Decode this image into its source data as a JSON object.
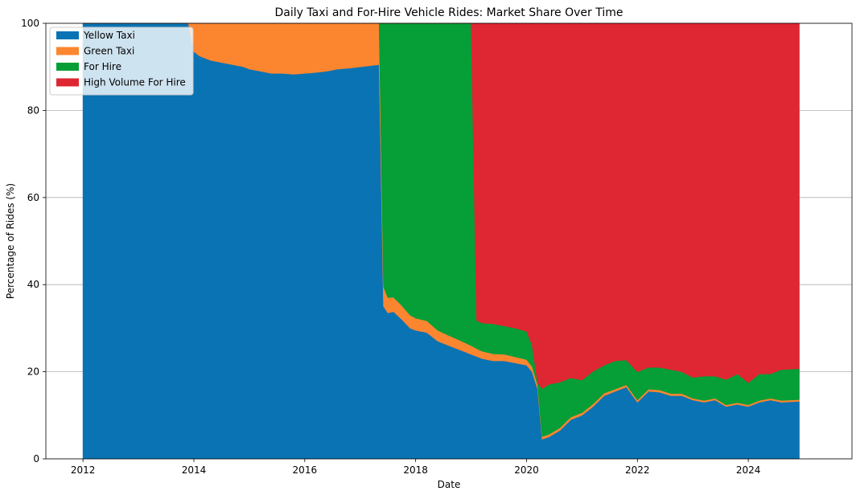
{
  "chart_data": {
    "type": "area",
    "title": "Daily Taxi and For-Hire Vehicle Rides: Market Share Over Time",
    "xlabel": "Date",
    "ylabel": "Percentage of Rides (%)",
    "xlim": [
      2011.33,
      2025.87
    ],
    "ylim": [
      0,
      100
    ],
    "x_ticks": [
      2012,
      2014,
      2016,
      2018,
      2020,
      2022,
      2024
    ],
    "y_ticks": [
      0,
      20,
      40,
      60,
      80,
      100
    ],
    "grid": true,
    "stacked": true,
    "legend_position": "top-left",
    "x": [
      2012.0,
      2013.9,
      2014.0,
      2014.1,
      2014.3,
      2014.5,
      2014.7,
      2014.9,
      2015.0,
      2015.2,
      2015.4,
      2015.6,
      2015.8,
      2016.0,
      2016.2,
      2016.4,
      2016.6,
      2016.8,
      2017.0,
      2017.2,
      2017.34,
      2017.42,
      2017.5,
      2017.6,
      2017.75,
      2017.9,
      2018.0,
      2018.2,
      2018.4,
      2018.6,
      2018.8,
      2019.0,
      2019.1,
      2019.2,
      2019.4,
      2019.6,
      2019.8,
      2020.0,
      2020.1,
      2020.2,
      2020.28,
      2020.4,
      2020.6,
      2020.8,
      2021.0,
      2021.2,
      2021.4,
      2021.6,
      2021.8,
      2022.0,
      2022.2,
      2022.4,
      2022.6,
      2022.8,
      2023.0,
      2023.2,
      2023.4,
      2023.6,
      2023.8,
      2024.0,
      2024.2,
      2024.4,
      2024.6,
      2024.92
    ],
    "series": [
      {
        "name": "Yellow Taxi",
        "color": "#0a73b3",
        "values": [
          100,
          100,
          93.5,
          92.5,
          91.5,
          91,
          90.5,
          90,
          89.5,
          89,
          88.5,
          88.5,
          88.3,
          88.5,
          88.7,
          89,
          89.5,
          89.7,
          90,
          90.3,
          90.5,
          35,
          33.5,
          33.8,
          32,
          30,
          29.5,
          29,
          27,
          26,
          25,
          24,
          23.5,
          23,
          22.5,
          22.5,
          22,
          21.5,
          20,
          16,
          4.5,
          5,
          6.5,
          9,
          10,
          12,
          14.5,
          15.5,
          16.5,
          13,
          15.5,
          15.3,
          14.5,
          14.5,
          13.5,
          13,
          13.5,
          12,
          12.5,
          12,
          13,
          13.5,
          13,
          13.2
        ]
      },
      {
        "name": "Green Taxi",
        "color": "#fc8530",
        "values": [
          0,
          0,
          6.5,
          7.5,
          8.5,
          9,
          9.5,
          10,
          10.5,
          11,
          11.5,
          11.5,
          11.7,
          11.5,
          11.3,
          11,
          10.5,
          10.3,
          10,
          9.7,
          9.5,
          4.5,
          3.5,
          3.3,
          3.2,
          3,
          2.8,
          2.7,
          2.5,
          2.3,
          2.2,
          2,
          1.8,
          1.7,
          1.6,
          1.5,
          1.4,
          1.3,
          1.2,
          1,
          0.6,
          0.6,
          0.6,
          0.6,
          0.6,
          0.6,
          0.6,
          0.5,
          0.5,
          0.5,
          0.5,
          0.5,
          0.5,
          0.5,
          0.4,
          0.4,
          0.4,
          0.4,
          0.4,
          0.4,
          0.4,
          0.4,
          0.4,
          0.4
        ]
      },
      {
        "name": "For Hire",
        "color": "#069e37",
        "values": [
          0,
          0,
          0,
          0,
          0,
          0,
          0,
          0,
          0,
          0,
          0,
          0,
          0,
          0,
          0,
          0,
          0,
          0,
          0,
          0,
          0,
          60.5,
          63,
          62.9,
          64.8,
          67,
          67.7,
          68.3,
          70.5,
          71.7,
          72.8,
          74,
          6.5,
          6.5,
          6.9,
          6.5,
          6.6,
          6.5,
          5,
          0.5,
          11,
          11.5,
          10.5,
          9,
          7.5,
          7.5,
          6.4,
          6.5,
          5.7,
          6.5,
          5,
          5.2,
          5.5,
          5,
          4.8,
          5.6,
          5.1,
          5.8,
          6.6,
          5.1,
          6.1,
          5.6,
          7.1,
          7.1
        ]
      },
      {
        "name": "High Volume For Hire",
        "color": "#df2633",
        "values": [
          0,
          0,
          0,
          0,
          0,
          0,
          0,
          0,
          0,
          0,
          0,
          0,
          0,
          0,
          0,
          0,
          0,
          0,
          0,
          0,
          0,
          0,
          0,
          0,
          0,
          0,
          0,
          0,
          0,
          0,
          0,
          0,
          68.2,
          68.8,
          69,
          69.5,
          70,
          70.7,
          73.8,
          82.5,
          83.9,
          82.9,
          82.4,
          81.4,
          81.9,
          79.9,
          78.5,
          77.5,
          77.3,
          80,
          79,
          79,
          79.5,
          80,
          81.3,
          81,
          81,
          81.8,
          80.5,
          82.5,
          80.5,
          80.5,
          79.5,
          79.3
        ]
      }
    ]
  }
}
